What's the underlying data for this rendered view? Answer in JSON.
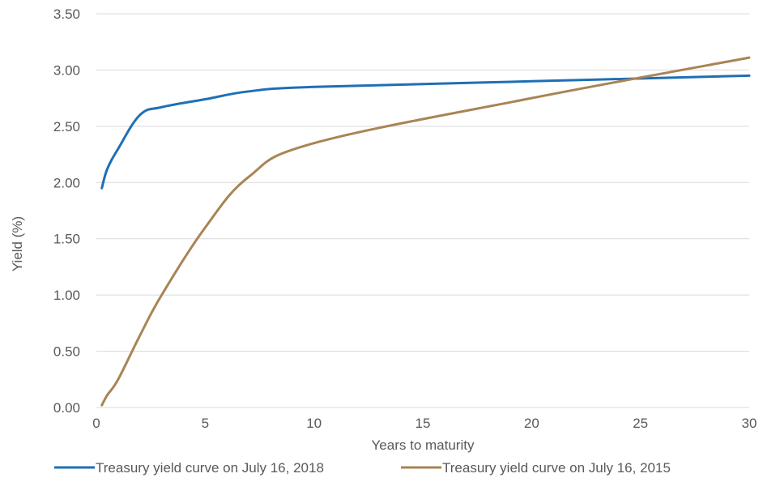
{
  "chart_data": {
    "type": "line",
    "title": "",
    "xlabel": "Years to maturity",
    "ylabel": "Yield (%)",
    "xlim": [
      0,
      30
    ],
    "ylim": [
      0,
      3.5
    ],
    "x_ticks": [
      "0",
      "5",
      "10",
      "15",
      "20",
      "25",
      "30"
    ],
    "y_ticks": [
      "0.00",
      "0.50",
      "1.00",
      "1.50",
      "2.00",
      "2.50",
      "3.00",
      "3.50"
    ],
    "grid": "horizontal",
    "legend_position": "bottom",
    "series": [
      {
        "name": "Treasury yield curve on July 16, 2018",
        "color": "#1f6fb5",
        "x": [
          0.25,
          0.5,
          1,
          2,
          3,
          5,
          7,
          10,
          20,
          30
        ],
        "y": [
          1.95,
          2.12,
          2.3,
          2.6,
          2.67,
          2.74,
          2.81,
          2.85,
          2.9,
          2.95
        ]
      },
      {
        "name": "Treasury yield curve on July 16, 2015",
        "color": "#a98455",
        "x": [
          0.25,
          0.5,
          1,
          2,
          3,
          5,
          7,
          10,
          20,
          30
        ],
        "y": [
          0.02,
          0.11,
          0.25,
          0.64,
          1.0,
          1.6,
          2.05,
          2.35,
          2.75,
          3.11
        ]
      }
    ]
  }
}
